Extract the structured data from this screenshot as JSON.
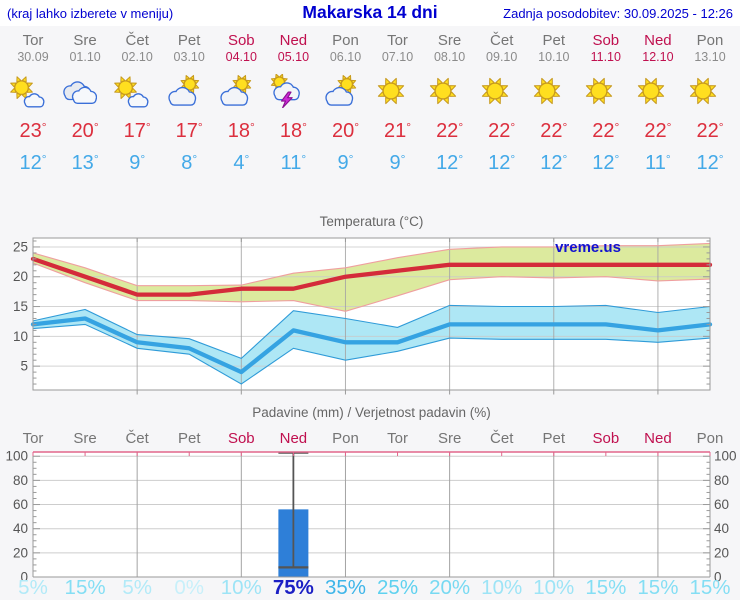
{
  "header": {
    "left_note": "(kraj lahko izberete v meniju)",
    "title": "Makarska 14 dni",
    "updated": "Zadnja posodobitev: 30.09.2025 - 12:26"
  },
  "units": {
    "degree": "°",
    "percent": "%"
  },
  "colors": {
    "accent_blue": "#0000d0",
    "weekday_label": "#757575",
    "weekend_label": "#c0104f",
    "tmax_text": "#dc2f3e",
    "tmin_text": "#43a9e8",
    "watermark_blue": "#1212d0",
    "axis_gray": "#9a9a9a",
    "precip_top_border": "#e2668b"
  },
  "days": [
    {
      "name": "Tor",
      "date": "30.09",
      "weekend": false,
      "icon": "sun-small-cloud",
      "tmax": 23,
      "tmin": 12
    },
    {
      "name": "Sre",
      "date": "01.10",
      "weekend": false,
      "icon": "clouds",
      "tmax": 20,
      "tmin": 13
    },
    {
      "name": "Čet",
      "date": "02.10",
      "weekend": false,
      "icon": "sun-small-cloud",
      "tmax": 17,
      "tmin": 9
    },
    {
      "name": "Pet",
      "date": "03.10",
      "weekend": false,
      "icon": "cloud-sun",
      "tmax": 17,
      "tmin": 8
    },
    {
      "name": "Sob",
      "date": "04.10",
      "weekend": true,
      "icon": "cloud-sun",
      "tmax": 18,
      "tmin": 4
    },
    {
      "name": "Ned",
      "date": "05.10",
      "weekend": true,
      "icon": "storm",
      "tmax": 18,
      "tmin": 11
    },
    {
      "name": "Pon",
      "date": "06.10",
      "weekend": false,
      "icon": "cloud-sun",
      "tmax": 20,
      "tmin": 9
    },
    {
      "name": "Tor",
      "date": "07.10",
      "weekend": false,
      "icon": "sunny",
      "tmax": 21,
      "tmin": 9
    },
    {
      "name": "Sre",
      "date": "08.10",
      "weekend": false,
      "icon": "sunny",
      "tmax": 22,
      "tmin": 12
    },
    {
      "name": "Čet",
      "date": "09.10",
      "weekend": false,
      "icon": "sunny",
      "tmax": 22,
      "tmin": 12
    },
    {
      "name": "Pet",
      "date": "10.10",
      "weekend": false,
      "icon": "sunny",
      "tmax": 22,
      "tmin": 12
    },
    {
      "name": "Sob",
      "date": "11.10",
      "weekend": true,
      "icon": "sunny",
      "tmax": 22,
      "tmin": 12
    },
    {
      "name": "Ned",
      "date": "12.10",
      "weekend": true,
      "icon": "sunny",
      "tmax": 22,
      "tmin": 11
    },
    {
      "name": "Pon",
      "date": "13.10",
      "weekend": false,
      "icon": "sunny",
      "tmax": 22,
      "tmin": 12
    }
  ],
  "chart_data": [
    {
      "type": "line",
      "title": "Temperatura (°C)",
      "watermark": "vreme.us",
      "ylim": [
        1,
        26.5
      ],
      "yticks": [
        5,
        10,
        15,
        20,
        25
      ],
      "x_gridline_indices": [
        2,
        4,
        6,
        8,
        10,
        12
      ],
      "series": [
        {
          "name": "max-temperature",
          "color": "#d42b3a",
          "band_color": "#dcea9e",
          "band_edge": "#ef9f9f",
          "values": [
            23,
            20,
            17,
            17,
            18,
            18,
            20,
            21,
            22,
            22,
            22,
            22,
            22,
            22
          ],
          "band_high": [
            24,
            21.5,
            18.5,
            18.5,
            18.6,
            20.6,
            21.5,
            23.2,
            24.6,
            25,
            25,
            25.2,
            25.2,
            25.6
          ],
          "band_low": [
            22.3,
            19,
            16,
            16,
            15.8,
            16,
            14.2,
            16.8,
            19.5,
            20,
            19.8,
            20,
            19.3,
            19.6
          ]
        },
        {
          "name": "min-temperature",
          "color": "#35a3e2",
          "band_color": "#aee7f5",
          "band_edge": "#2f9bd8",
          "values": [
            12,
            13,
            9,
            8,
            4,
            11,
            9,
            9,
            12,
            12,
            12,
            12,
            11,
            12
          ],
          "band_high": [
            12.6,
            14.5,
            10.3,
            9.6,
            6.3,
            14.3,
            13,
            11.5,
            15.2,
            15,
            15,
            15.2,
            14,
            15
          ],
          "band_low": [
            11.3,
            12,
            8,
            7,
            2,
            8,
            6,
            7.5,
            9.7,
            9.5,
            9.5,
            9.5,
            9,
            9.7
          ]
        }
      ]
    },
    {
      "type": "bar",
      "title": "Padavine (mm) / Verjetnost padavin (%)",
      "ylim": [
        0,
        103.5
      ],
      "yticks": [
        0,
        20,
        40,
        60,
        80,
        100
      ],
      "x_gridline_indices": [
        2,
        4,
        6,
        8,
        10,
        12
      ],
      "categories": [
        "Tor",
        "Sre",
        "Čet",
        "Pet",
        "Sob",
        "Ned",
        "Pon",
        "Tor",
        "Sre",
        "Čet",
        "Pet",
        "Sob",
        "Ned",
        "Pon"
      ],
      "values": [
        0,
        0,
        0,
        0,
        0,
        56,
        0,
        0,
        0,
        0,
        0,
        0,
        0,
        0
      ],
      "bar_color": "#2e7fd8",
      "whisker_color": "#555555",
      "whiskers": [
        {
          "index": 5,
          "low": 8,
          "high": 103
        }
      ],
      "probabilities": [
        5,
        15,
        5,
        0,
        10,
        75,
        35,
        25,
        20,
        10,
        10,
        15,
        15,
        15
      ],
      "prob_colors": {
        "0": "#c8f0fa",
        "5": "#b2eaf8",
        "10": "#9de4f6",
        "15": "#84def4",
        "20": "#77d9f2",
        "25": "#5ed1ef",
        "35": "#3eb5e9",
        "75": "#1b1fc4"
      }
    }
  ]
}
